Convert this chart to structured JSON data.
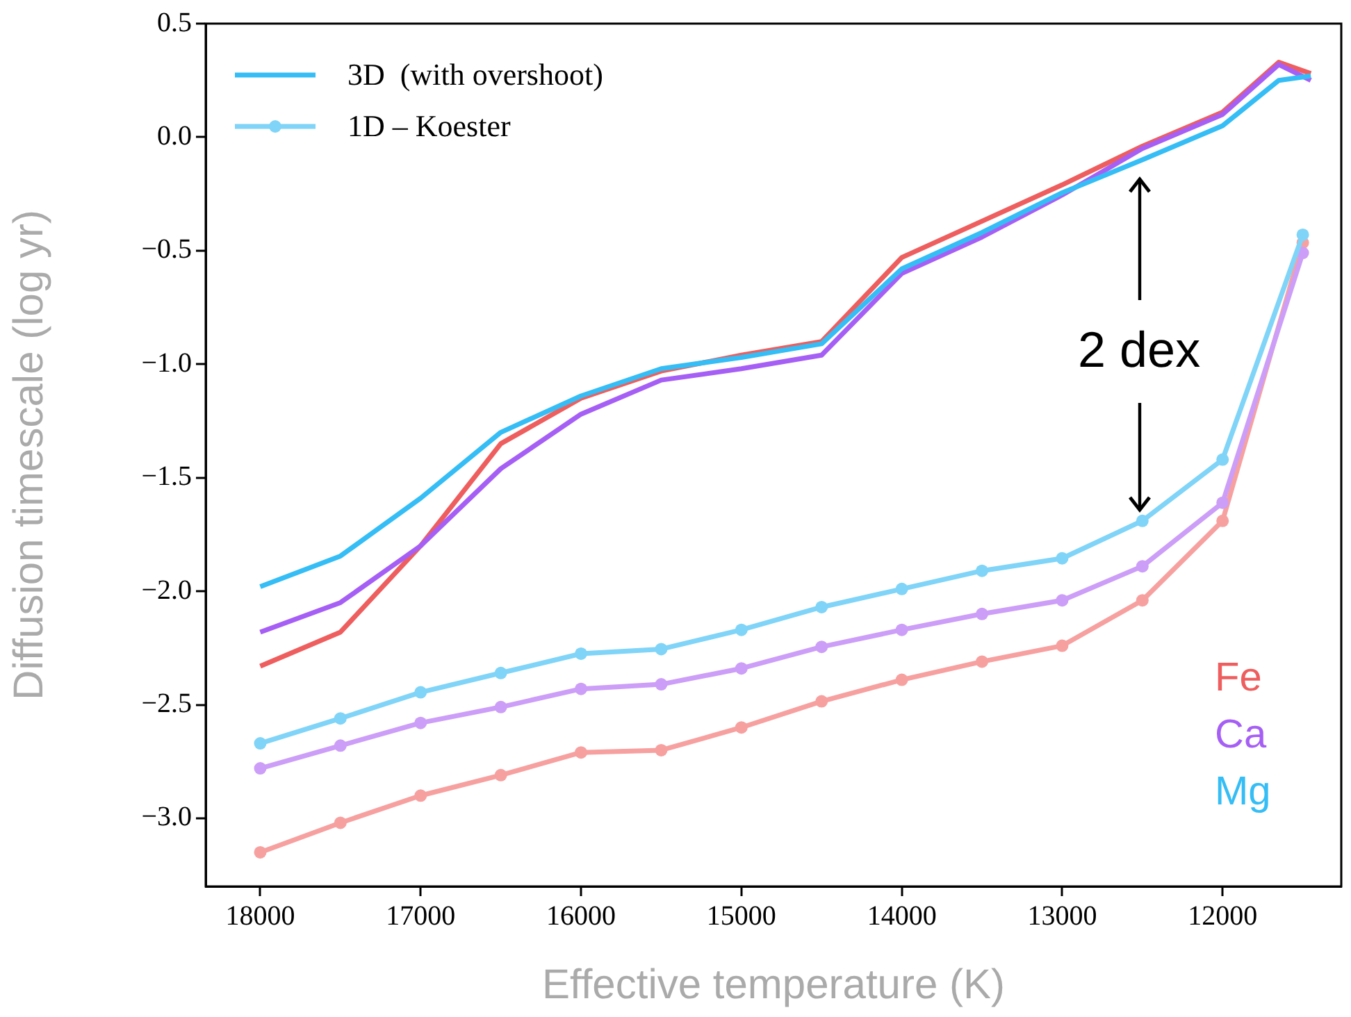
{
  "chart_data": {
    "type": "line",
    "xlabel": "Effective temperature (K)",
    "ylabel": "Diffusion timescale (log yr)",
    "xlim": [
      18340,
      11260
    ],
    "ylim": [
      -3.3,
      0.5
    ],
    "xticks": [
      18000,
      17000,
      16000,
      15000,
      14000,
      13000,
      12000
    ],
    "yticks": [
      {
        "value": 0.5,
        "label": "0.5"
      },
      {
        "value": 0,
        "label": "0.0"
      },
      {
        "value": -0.5,
        "label": "−0.5"
      },
      {
        "value": -1,
        "label": "−1.0"
      },
      {
        "value": -1.5,
        "label": "−1.5"
      },
      {
        "value": -2,
        "label": "−2.0"
      },
      {
        "value": -2.5,
        "label": "−2.5"
      },
      {
        "value": -3,
        "label": "−3.0"
      }
    ],
    "grid": false,
    "legend": "top left",
    "annotations": [
      "Fe",
      "Ca",
      "Mg",
      "2 dex"
    ],
    "series": [
      {
        "color": "#ee5e5e",
        "marker": "none",
        "x": [
          18000,
          17500,
          17000,
          16500,
          16000,
          15500,
          15000,
          14500,
          14000,
          13500,
          13000,
          12500,
          12000,
          11650,
          11450
        ],
        "values": [
          -2.33,
          -2.18,
          -1.8,
          -1.35,
          -1.15,
          -1.03,
          -0.96,
          -0.9,
          -0.53,
          -0.37,
          -0.21,
          -0.04,
          0.11,
          0.33,
          0.28
        ]
      },
      {
        "color": "#a65ff5",
        "marker": "none",
        "x": [
          18000,
          17500,
          17000,
          16500,
          16000,
          15500,
          15000,
          14500,
          14000,
          13500,
          13000,
          12500,
          12000,
          11650,
          11450
        ],
        "values": [
          -2.18,
          -2.05,
          -1.8,
          -1.46,
          -1.22,
          -1.07,
          -1.02,
          -0.96,
          -0.6,
          -0.44,
          -0.255,
          -0.05,
          0.1,
          0.32,
          0.25
        ]
      },
      {
        "name": "3D  (with overshoot)",
        "color": "#35bdf5",
        "marker": "none",
        "x": [
          18000,
          17500,
          17000,
          16500,
          16000,
          15500,
          15000,
          14500,
          14000,
          13500,
          13000,
          12500,
          12000,
          11650,
          11450
        ],
        "values": [
          -1.98,
          -1.845,
          -1.59,
          -1.3,
          -1.14,
          -1.02,
          -0.97,
          -0.91,
          -0.58,
          -0.42,
          -0.245,
          -0.1,
          0.05,
          0.25,
          0.27
        ]
      },
      {
        "color": "#f7a0a0",
        "marker": "circle",
        "x": [
          18000,
          17500,
          17000,
          16500,
          16000,
          15500,
          15000,
          14500,
          14000,
          13500,
          13000,
          12500,
          12000,
          11500
        ],
        "values": [
          -3.15,
          -3.02,
          -2.9,
          -2.81,
          -2.71,
          -2.7,
          -2.6,
          -2.485,
          -2.39,
          -2.31,
          -2.24,
          -2.04,
          -1.69,
          -0.465
        ]
      },
      {
        "color": "#cc9ef7",
        "marker": "circle",
        "x": [
          18000,
          17500,
          17000,
          16500,
          16000,
          15500,
          15000,
          14500,
          14000,
          13500,
          13000,
          12500,
          12000,
          11500
        ],
        "values": [
          -2.78,
          -2.68,
          -2.58,
          -2.51,
          -2.43,
          -2.41,
          -2.34,
          -2.245,
          -2.17,
          -2.1,
          -2.04,
          -1.89,
          -1.61,
          -0.51
        ]
      },
      {
        "name": "1D – Koester",
        "color": "#7fd4f8",
        "marker": "circle",
        "x": [
          18000,
          17500,
          17000,
          16500,
          16000,
          15500,
          15000,
          14500,
          14000,
          13500,
          13000,
          12500,
          12000,
          11500
        ],
        "values": [
          -2.67,
          -2.56,
          -2.445,
          -2.36,
          -2.275,
          -2.255,
          -2.17,
          -2.07,
          -1.99,
          -1.91,
          -1.855,
          -1.69,
          -1.42,
          -0.43
        ]
      }
    ]
  }
}
